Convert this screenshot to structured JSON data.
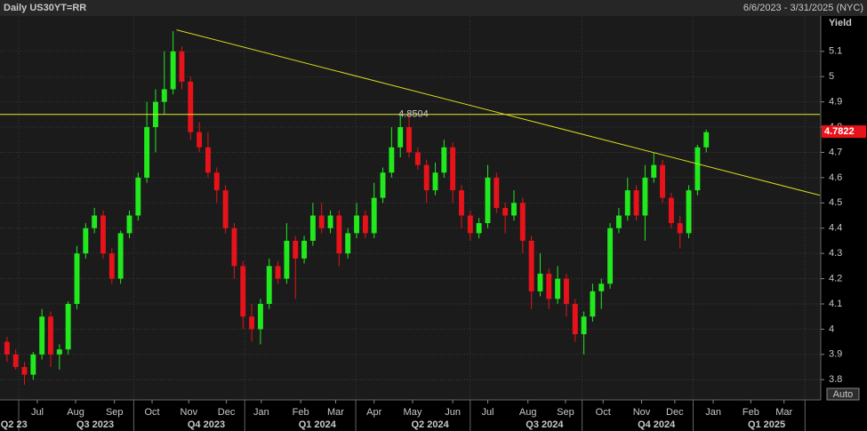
{
  "chart_data": {
    "type": "candlestick",
    "title": "Daily US30YT=RR",
    "date_range": "6/6/2023 - 3/31/2025 (NYC)",
    "y_label": "Yield",
    "scale_button": "Auto",
    "up_color": "#22e81e",
    "down_color": "#e8121a",
    "x": [
      0,
      1,
      2,
      3,
      4,
      5,
      6,
      7,
      8,
      9,
      10,
      11,
      12,
      13,
      14,
      15,
      16,
      17,
      18,
      19,
      20,
      21,
      22,
      23,
      24,
      25,
      26,
      27,
      28,
      29,
      30,
      31,
      32,
      33,
      34,
      35,
      36,
      37,
      38,
      39,
      40,
      41,
      42,
      43,
      44,
      45,
      46,
      47,
      48,
      49,
      50,
      51,
      52,
      53,
      54,
      55,
      56,
      57,
      58,
      59,
      60,
      61,
      62,
      63,
      64,
      65,
      66,
      67,
      68,
      69,
      70,
      71,
      72,
      73,
      74,
      75,
      76,
      77,
      78,
      79,
      80
    ],
    "open": [
      3.95,
      3.9,
      3.85,
      3.82,
      3.9,
      4.05,
      3.9,
      3.92,
      4.1,
      4.3,
      4.4,
      4.45,
      4.3,
      4.2,
      4.38,
      4.45,
      4.6,
      4.8,
      4.9,
      4.95,
      5.1,
      4.98,
      4.78,
      4.72,
      4.62,
      4.55,
      4.4,
      4.25,
      4.05,
      4.0,
      4.1,
      4.25,
      4.2,
      4.35,
      4.28,
      4.35,
      4.45,
      4.4,
      4.45,
      4.3,
      4.38,
      4.45,
      4.38,
      4.52,
      4.62,
      4.72,
      4.8,
      4.7,
      4.65,
      4.55,
      4.62,
      4.72,
      4.55,
      4.45,
      4.38,
      4.42,
      4.6,
      4.48,
      4.45,
      4.5,
      4.35,
      4.15,
      4.22,
      4.12,
      4.2,
      4.1,
      3.98,
      4.05,
      4.15,
      4.18,
      4.4,
      4.45,
      4.55,
      4.45,
      4.6,
      4.65,
      4.52,
      4.42,
      4.38,
      4.55,
      4.72
    ],
    "high": [
      3.97,
      3.92,
      3.87,
      3.91,
      4.08,
      4.07,
      3.94,
      4.11,
      4.33,
      4.42,
      4.48,
      4.47,
      4.32,
      4.39,
      4.47,
      4.62,
      4.9,
      4.95,
      5.1,
      5.18,
      5.12,
      5.0,
      4.82,
      4.78,
      4.64,
      4.57,
      4.42,
      4.27,
      4.1,
      4.12,
      4.28,
      4.27,
      4.42,
      4.37,
      4.37,
      4.5,
      4.5,
      4.47,
      4.47,
      4.4,
      4.5,
      4.47,
      4.58,
      4.64,
      4.8,
      4.85,
      4.85,
      4.72,
      4.67,
      4.66,
      4.75,
      4.74,
      4.57,
      4.47,
      4.44,
      4.65,
      4.62,
      4.5,
      4.55,
      4.52,
      4.37,
      4.3,
      4.24,
      4.25,
      4.22,
      4.12,
      4.07,
      4.18,
      4.2,
      4.42,
      4.48,
      4.6,
      4.57,
      4.65,
      4.7,
      4.67,
      4.54,
      4.45,
      4.57,
      4.73,
      4.79
    ],
    "low": [
      3.87,
      3.84,
      3.78,
      3.8,
      3.88,
      3.85,
      3.84,
      3.9,
      4.08,
      4.28,
      4.38,
      4.28,
      4.18,
      4.18,
      4.36,
      4.43,
      4.58,
      4.7,
      4.85,
      4.93,
      4.95,
      4.75,
      4.7,
      4.6,
      4.5,
      4.38,
      4.2,
      4.0,
      3.95,
      3.94,
      4.08,
      4.18,
      4.18,
      4.12,
      4.26,
      4.33,
      4.38,
      4.38,
      4.25,
      4.28,
      4.36,
      4.36,
      4.36,
      4.5,
      4.6,
      4.68,
      4.68,
      4.63,
      4.5,
      4.53,
      4.6,
      4.5,
      4.4,
      4.35,
      4.36,
      4.4,
      4.46,
      4.38,
      4.43,
      4.3,
      4.08,
      4.13,
      4.08,
      4.1,
      4.05,
      3.95,
      3.9,
      4.03,
      4.08,
      4.16,
      4.38,
      4.43,
      4.43,
      4.35,
      4.58,
      4.5,
      4.4,
      4.32,
      4.36,
      4.53,
      4.7
    ],
    "close": [
      3.9,
      3.85,
      3.82,
      3.9,
      4.05,
      3.9,
      3.92,
      4.1,
      4.3,
      4.4,
      4.45,
      4.3,
      4.2,
      4.38,
      4.45,
      4.6,
      4.8,
      4.9,
      4.95,
      5.1,
      4.98,
      4.78,
      4.72,
      4.62,
      4.55,
      4.4,
      4.25,
      4.05,
      4.0,
      4.1,
      4.25,
      4.2,
      4.35,
      4.28,
      4.35,
      4.45,
      4.4,
      4.45,
      4.3,
      4.38,
      4.45,
      4.38,
      4.52,
      4.62,
      4.72,
      4.8,
      4.7,
      4.65,
      4.55,
      4.62,
      4.72,
      4.55,
      4.45,
      4.38,
      4.42,
      4.6,
      4.48,
      4.45,
      4.5,
      4.35,
      4.15,
      4.22,
      4.12,
      4.2,
      4.1,
      3.98,
      4.05,
      4.15,
      4.18,
      4.4,
      4.45,
      4.55,
      4.45,
      4.6,
      4.65,
      4.52,
      4.42,
      4.38,
      4.55,
      4.72,
      4.78
    ],
    "xlim": [
      -0.8,
      93
    ],
    "ylim": [
      3.72,
      5.24
    ],
    "yticks": [
      3.8,
      3.9,
      4,
      4.1,
      4.2,
      4.3,
      4.4,
      4.5,
      4.6,
      4.7,
      4.8,
      4.9,
      5,
      5.1
    ],
    "xticks": [
      {
        "value": 3.47,
        "label": "Jul"
      },
      {
        "value": 7.85,
        "label": "Aug"
      },
      {
        "value": 12.3,
        "label": "Sep"
      },
      {
        "value": 16.6,
        "label": "Oct"
      },
      {
        "value": 20.8,
        "label": "Nov"
      },
      {
        "value": 25.1,
        "label": "Dec"
      },
      {
        "value": 29.1,
        "label": "Jan"
      },
      {
        "value": 33.6,
        "label": "Feb"
      },
      {
        "value": 37.6,
        "label": "Mar"
      },
      {
        "value": 42.0,
        "label": "Apr"
      },
      {
        "value": 46.4,
        "label": "May"
      },
      {
        "value": 51.0,
        "label": "Jun"
      },
      {
        "value": 55.0,
        "label": "Jul"
      },
      {
        "value": 59.6,
        "label": "Aug"
      },
      {
        "value": 63.9,
        "label": "Sep"
      },
      {
        "value": 68.2,
        "label": "Oct"
      },
      {
        "value": 72.6,
        "label": "Nov"
      },
      {
        "value": 76.4,
        "label": "Dec"
      },
      {
        "value": 80.8,
        "label": "Jan"
      },
      {
        "value": 85.1,
        "label": "Feb"
      },
      {
        "value": 88.9,
        "label": "Mar"
      }
    ],
    "quarter_ticks": [
      {
        "value": 0.8,
        "label": "Q2 23"
      },
      {
        "value": 10.09,
        "label": "Q3 2023"
      },
      {
        "value": 22.8,
        "label": "Q4 2023"
      },
      {
        "value": 35.5,
        "label": "Q1 2024"
      },
      {
        "value": 48.4,
        "label": "Q2 2024"
      },
      {
        "value": 61.5,
        "label": "Q3 2024"
      },
      {
        "value": 74.3,
        "label": "Q4 2024"
      },
      {
        "value": 86.9,
        "label": "Q1 2025"
      }
    ],
    "quarter_starts": [
      1.34,
      14.5,
      27.2,
      39.9,
      53.0,
      65.8,
      78.5,
      91.3
    ],
    "grid": true,
    "level": 4.8504,
    "level_color": "#e8e830",
    "trendline": {
      "x": [
        19.4,
        93
      ],
      "y": [
        5.185,
        4.53
      ],
      "color": "#d8d820"
    },
    "last_price": 4.7822,
    "last_price_color": "#e8121a"
  }
}
